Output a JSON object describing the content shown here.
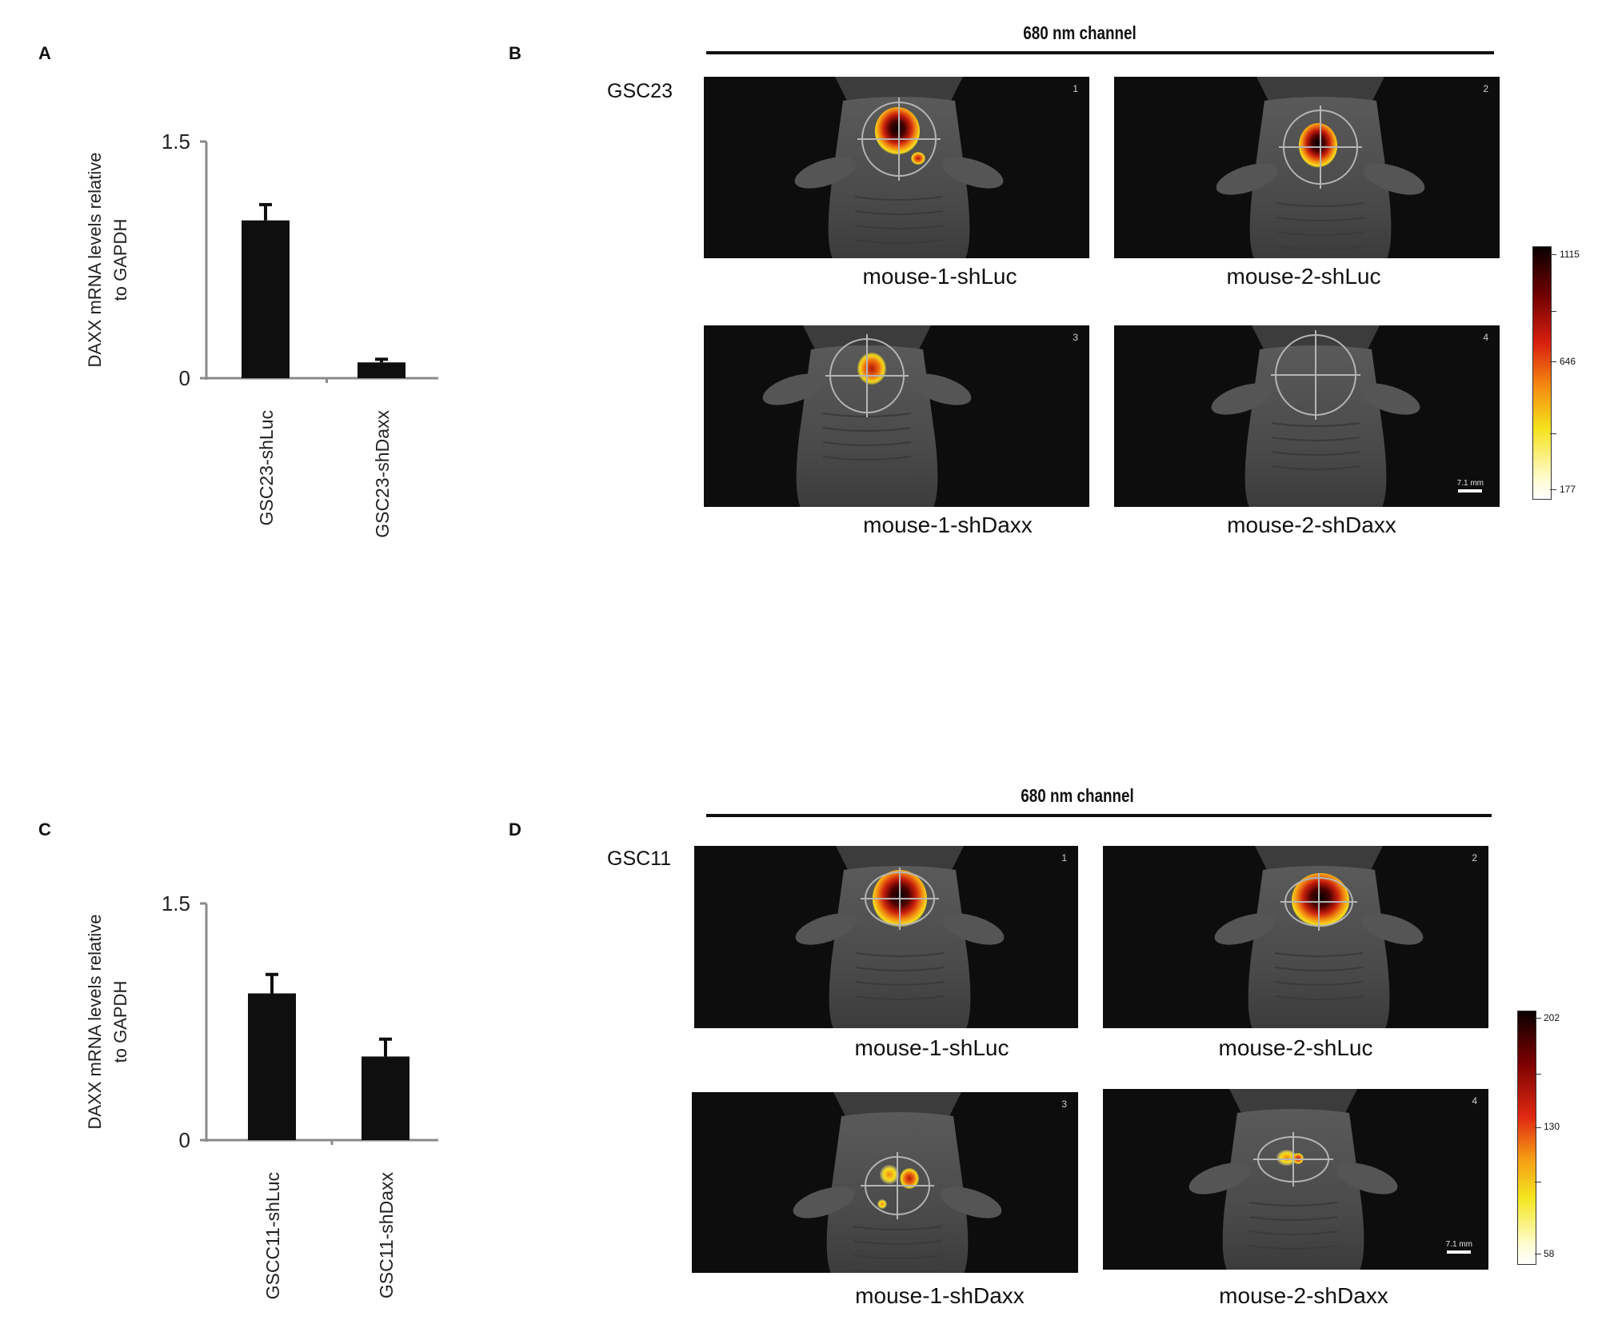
{
  "panels": {
    "A": "A",
    "B": "B",
    "C": "C",
    "D": "D"
  },
  "chart_data": [
    {
      "type": "bar",
      "panel": "A",
      "categories": [
        "GSC23-shLuc",
        "GSC23-shDaxx"
      ],
      "values": [
        1.0,
        0.1
      ],
      "errors": [
        0.1,
        0.02
      ],
      "ylabel_line1": "DAXX mRNA levels relative",
      "ylabel_line2": "to GAPDH",
      "ylim": [
        0,
        1.5
      ],
      "yticks": [
        "0",
        "1.5"
      ]
    },
    {
      "type": "bar",
      "panel": "C",
      "categories": [
        "GSCC11-shLuc",
        "GSC11-shDaxx"
      ],
      "values": [
        0.93,
        0.53
      ],
      "errors": [
        0.12,
        0.11
      ],
      "ylabel_line1": "DAXX mRNA levels relative",
      "ylabel_line2": "to GAPDH",
      "ylim": [
        0,
        1.5
      ],
      "yticks": [
        "0",
        "1.5"
      ]
    }
  ],
  "imaging_B": {
    "channel": "680 nm channel",
    "cell_line": "GSC23",
    "images": [
      {
        "num": "1",
        "label": "mouse-1-shLuc"
      },
      {
        "num": "2",
        "label": "mouse-2-shLuc"
      },
      {
        "num": "3",
        "label": "mouse-1-shDaxx"
      },
      {
        "num": "4",
        "label": "mouse-2-shDaxx"
      }
    ],
    "scale_bar": "7.1 mm",
    "colorbar": {
      "max": "1115",
      "mid": "646",
      "min": "177"
    }
  },
  "imaging_D": {
    "channel": "680 nm channel",
    "cell_line": "GSC11",
    "images": [
      {
        "num": "1",
        "label": "mouse-1-shLuc"
      },
      {
        "num": "2",
        "label": "mouse-2-shLuc"
      },
      {
        "num": "3",
        "label": "mouse-1-shDaxx"
      },
      {
        "num": "4",
        "label": "mouse-2-shDaxx"
      }
    ],
    "scale_bar": "7.1 mm",
    "colorbar": {
      "max": "202",
      "mid": "130",
      "min": "58"
    }
  }
}
